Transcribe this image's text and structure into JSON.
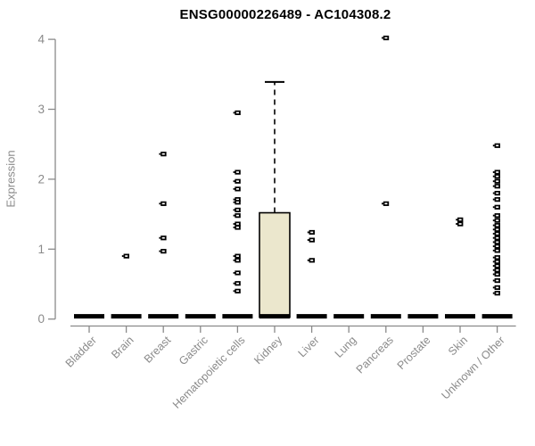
{
  "header": {
    "title": "ENSG00000226489 - AC104308.2"
  },
  "chart_data": {
    "type": "boxplot",
    "title": "ENSG00000226489 - AC104308.2",
    "xlabel": "",
    "ylabel": "Expression",
    "ylim": [
      0,
      4
    ],
    "yticks": [
      "0",
      "1",
      "2",
      "3",
      "4"
    ],
    "grid": false,
    "legend": "none",
    "categories": [
      "Bladder",
      "Brain",
      "Breast",
      "Gastric",
      "Hematopoietic cells",
      "Kidney",
      "Liver",
      "Lung",
      "Pancreas",
      "Prostate",
      "Skin",
      "Unknown / Other"
    ],
    "boxes": [
      {
        "category": "Bladder",
        "median": 0,
        "q1": 0,
        "q3": 0,
        "whisker_low": 0,
        "whisker_high": 0,
        "outliers": []
      },
      {
        "category": "Brain",
        "median": 0,
        "q1": 0,
        "q3": 0,
        "whisker_low": 0,
        "whisker_high": 0,
        "outliers": [
          0.9
        ]
      },
      {
        "category": "Breast",
        "median": 0,
        "q1": 0,
        "q3": 0,
        "whisker_low": 0,
        "whisker_high": 0,
        "outliers": [
          2.36,
          1.65,
          1.16,
          0.97
        ]
      },
      {
        "category": "Gastric",
        "median": 0,
        "q1": 0,
        "q3": 0,
        "whisker_low": 0,
        "whisker_high": 0,
        "outliers": []
      },
      {
        "category": "Hematopoietic cells",
        "median": 0,
        "q1": 0,
        "q3": 0,
        "whisker_low": 0,
        "whisker_high": 0,
        "outliers": [
          2.95,
          2.1,
          1.97,
          1.86,
          1.71,
          1.67,
          1.56,
          1.48,
          1.36,
          1.31,
          0.9,
          0.84,
          0.66,
          0.51,
          0.4
        ]
      },
      {
        "category": "Kidney",
        "median": 0,
        "q1": 0,
        "q3": 1.52,
        "whisker_low": 0,
        "whisker_high": 3.39,
        "outliers": []
      },
      {
        "category": "Liver",
        "median": 0,
        "q1": 0,
        "q3": 0,
        "whisker_low": 0,
        "whisker_high": 0,
        "outliers": [
          1.24,
          1.13,
          0.84
        ]
      },
      {
        "category": "Lung",
        "median": 0,
        "q1": 0,
        "q3": 0,
        "whisker_low": 0,
        "whisker_high": 0,
        "outliers": []
      },
      {
        "category": "Pancreas",
        "median": 0,
        "q1": 0,
        "q3": 0,
        "whisker_low": 0,
        "whisker_high": 0,
        "outliers": [
          4.02,
          1.65
        ]
      },
      {
        "category": "Prostate",
        "median": 0,
        "q1": 0,
        "q3": 0,
        "whisker_low": 0,
        "whisker_high": 0,
        "outliers": []
      },
      {
        "category": "Skin",
        "median": 0,
        "q1": 0,
        "q3": 0,
        "whisker_low": 0,
        "whisker_high": 0,
        "outliers": [
          1.42,
          1.36
        ]
      },
      {
        "category": "Unknown / Other",
        "median": 0,
        "q1": 0,
        "q3": 0,
        "whisker_low": 0,
        "whisker_high": 0,
        "outliers": [
          2.48,
          2.1,
          2.04,
          1.97,
          1.9,
          1.8,
          1.71,
          1.6,
          1.48,
          1.41,
          1.34,
          1.28,
          1.22,
          1.16,
          1.1,
          1.04,
          0.98,
          0.88,
          0.82,
          0.76,
          0.7,
          0.64,
          0.55,
          0.45,
          0.37
        ]
      }
    ],
    "colors": {
      "box_fill": "#ebe7cd",
      "box_stroke": "#000000",
      "flat_bar": "#000000",
      "outlier": "#000000",
      "axis": "#8a8a8a",
      "tick_label": "#8a8a8a",
      "title": "#000000"
    }
  }
}
